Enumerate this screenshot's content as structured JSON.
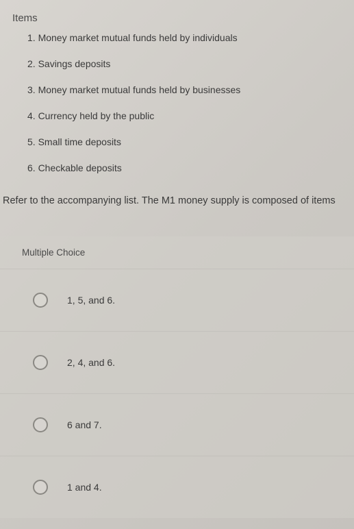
{
  "items": {
    "header": "Items",
    "list": [
      "1.  Money market mutual funds held by individuals",
      "2.  Savings deposits",
      "3.  Money market mutual funds held by businesses",
      "4.  Currency held by the public",
      "5.  Small time deposits",
      "6.  Checkable deposits"
    ]
  },
  "question": "Refer to the accompanying list. The M1 money supply is composed of items",
  "choices": {
    "header": "Multiple Choice",
    "options": [
      "1, 5, and 6.",
      "2, 4, and 6.",
      "6 and 7.",
      "1 and 4."
    ]
  },
  "colors": {
    "background_start": "#d8d5d0",
    "background_end": "#c5c2bd",
    "text": "#3a3a3a",
    "radio_border": "#8a8883"
  }
}
